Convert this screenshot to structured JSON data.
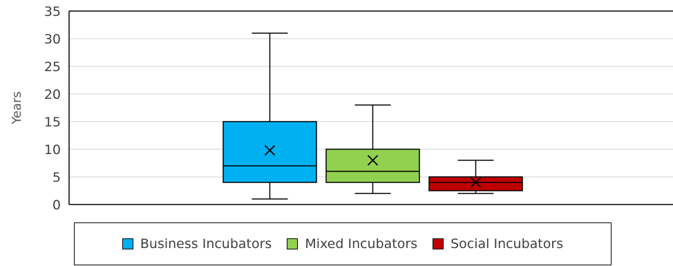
{
  "chart_data": {
    "type": "box",
    "title": "",
    "xlabel": "",
    "ylabel": "Years",
    "ylim": [
      0,
      35
    ],
    "yticks": [
      0,
      5,
      10,
      15,
      20,
      25,
      30,
      35
    ],
    "grid": true,
    "legend_position": "bottom",
    "series": [
      {
        "name": "Business Incubators",
        "color": "#00b0f0",
        "min": 1,
        "q1": 4,
        "median": 7,
        "mean": 9.8,
        "q3": 15,
        "max": 31
      },
      {
        "name": "Mixed Incubators",
        "color": "#92d050",
        "min": 2,
        "q1": 4,
        "median": 6,
        "mean": 8,
        "q3": 10,
        "max": 18
      },
      {
        "name": "Social Incubators",
        "color": "#c00000",
        "min": 2,
        "q1": 2.5,
        "median": 4,
        "mean": 4,
        "q3": 5,
        "max": 8
      }
    ]
  }
}
